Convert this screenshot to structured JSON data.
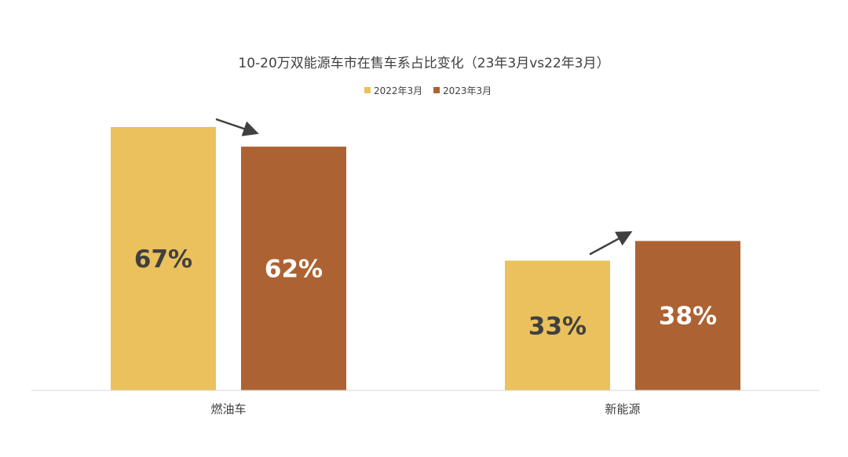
{
  "chart_data": {
    "type": "bar",
    "title": "10-20万双能源车市在售车系占比变化（23年3月vs22年3月）",
    "categories": [
      "燃油车",
      "新能源"
    ],
    "series": [
      {
        "name": "2022年3月",
        "values": [
          67,
          33
        ],
        "labels": [
          "67%",
          "33%"
        ],
        "color": "#EAC15C",
        "label_color": "#404040"
      },
      {
        "name": "2023年3月",
        "values": [
          62,
          38
        ],
        "labels": [
          "62%",
          "38%"
        ],
        "color": "#AD6233",
        "label_color": "#ffffff"
      }
    ],
    "ylim": [
      0,
      67
    ],
    "grid": false,
    "legend_position": "top-center",
    "annotations": [
      {
        "type": "arrow",
        "category": "燃油车",
        "direction": "down"
      },
      {
        "type": "arrow",
        "category": "新能源",
        "direction": "up"
      }
    ]
  }
}
